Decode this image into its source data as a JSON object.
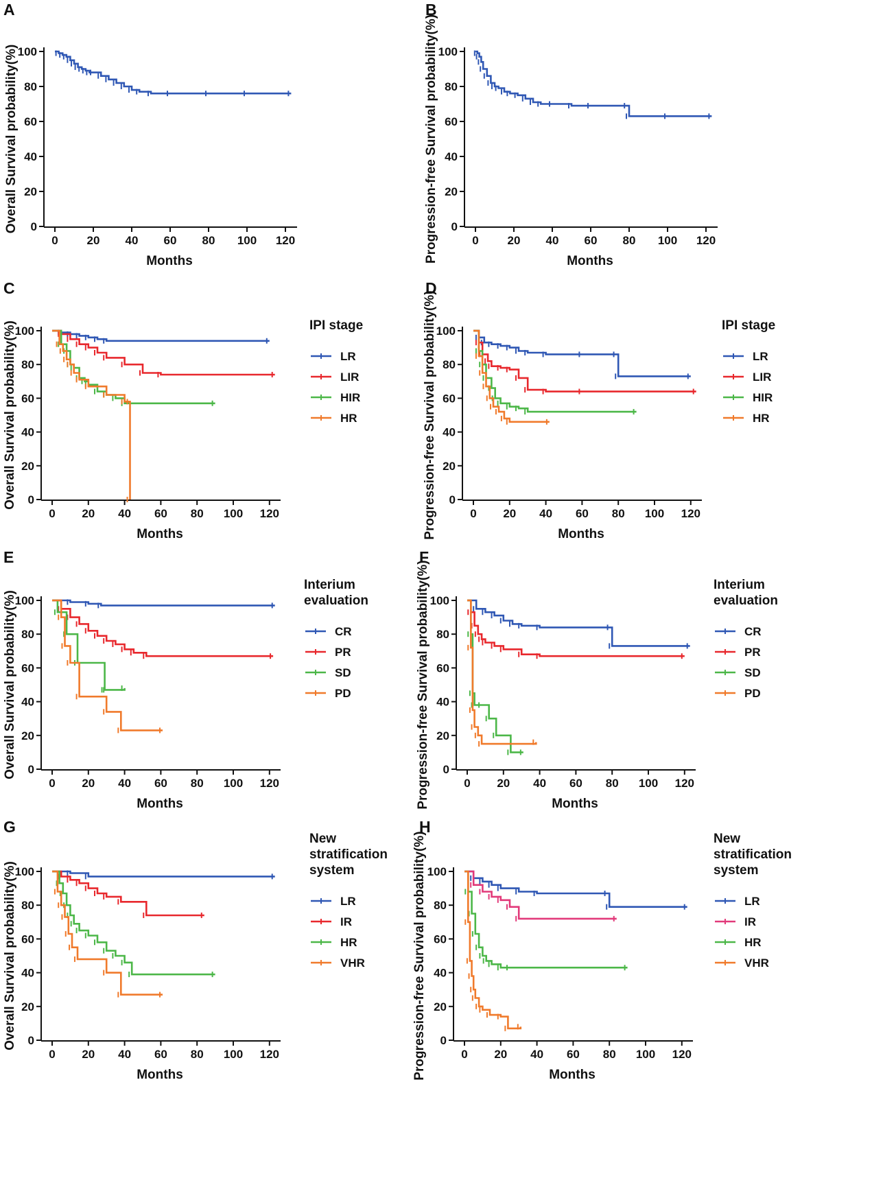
{
  "colors": {
    "blue": "#2f57b4",
    "red": "#e8282d",
    "green": "#4cb748",
    "orange": "#f07a2b",
    "magenta": "#e23a7a",
    "axis": "#111111"
  },
  "chart_data": [
    {
      "panel": "A",
      "type": "line",
      "xlabel": "Months",
      "ylabel": "Overall Survival probability(%)",
      "xlim": [
        0,
        125
      ],
      "ylim": [
        0,
        100
      ],
      "xticks": [
        0,
        20,
        40,
        60,
        80,
        100,
        120
      ],
      "yticks": [
        0,
        20,
        40,
        60,
        80,
        100
      ],
      "legend_title": [],
      "series": [
        {
          "name": "",
          "color": "blue",
          "x": [
            0,
            2,
            4,
            6,
            8,
            10,
            12,
            14,
            16,
            18,
            20,
            24,
            28,
            32,
            36,
            40,
            44,
            50,
            60,
            80,
            100,
            123
          ],
          "y": [
            100,
            99,
            98,
            97,
            95,
            93,
            91,
            90,
            89,
            88,
            88,
            86,
            84,
            82,
            80,
            78,
            77,
            76,
            76,
            76,
            76,
            76
          ]
        }
      ]
    },
    {
      "panel": "B",
      "type": "line",
      "xlabel": "Months",
      "ylabel": "Progression-free Survival probability(%)",
      "xlim": [
        0,
        125
      ],
      "ylim": [
        0,
        100
      ],
      "xticks": [
        0,
        20,
        40,
        60,
        80,
        100,
        120
      ],
      "yticks": [
        0,
        20,
        40,
        60,
        80,
        100
      ],
      "legend_title": [],
      "series": [
        {
          "name": "",
          "color": "blue",
          "x": [
            0,
            1,
            2,
            3,
            4,
            6,
            8,
            10,
            12,
            15,
            18,
            22,
            26,
            30,
            34,
            40,
            50,
            60,
            79,
            80,
            100,
            123
          ],
          "y": [
            100,
            99,
            97,
            94,
            90,
            86,
            82,
            80,
            79,
            77,
            76,
            75,
            73,
            71,
            70,
            70,
            69,
            69,
            69,
            63,
            63,
            63
          ]
        }
      ]
    },
    {
      "panel": "C",
      "type": "line",
      "xlabel": "Months",
      "ylabel": "Overall Survival probability(%)",
      "xlim": [
        0,
        125
      ],
      "ylim": [
        0,
        100
      ],
      "xticks": [
        0,
        20,
        40,
        60,
        80,
        100,
        120
      ],
      "yticks": [
        0,
        20,
        40,
        60,
        80,
        100
      ],
      "legend_title": [
        "IPI stage"
      ],
      "series": [
        {
          "name": "LR",
          "color": "blue",
          "x": [
            0,
            5,
            10,
            15,
            20,
            25,
            30,
            120
          ],
          "y": [
            100,
            99,
            98,
            97,
            96,
            95,
            94,
            94
          ]
        },
        {
          "name": "LIR",
          "color": "red",
          "x": [
            0,
            5,
            10,
            15,
            20,
            25,
            30,
            40,
            50,
            60,
            123
          ],
          "y": [
            100,
            98,
            95,
            92,
            90,
            87,
            84,
            80,
            75,
            74,
            74
          ]
        },
        {
          "name": "HIR",
          "color": "green",
          "x": [
            0,
            5,
            8,
            10,
            12,
            15,
            18,
            20,
            25,
            30,
            35,
            40,
            90
          ],
          "y": [
            100,
            92,
            88,
            80,
            78,
            72,
            70,
            68,
            64,
            62,
            60,
            57,
            57
          ]
        },
        {
          "name": "HR",
          "color": "orange",
          "x": [
            0,
            4,
            6,
            8,
            10,
            12,
            15,
            20,
            30,
            40,
            43,
            43
          ],
          "y": [
            100,
            92,
            88,
            83,
            80,
            75,
            71,
            67,
            62,
            58,
            58,
            0
          ]
        }
      ]
    },
    {
      "panel": "D",
      "type": "line",
      "xlabel": "Months",
      "ylabel": "Progression-free Survival probability(%)",
      "xlim": [
        0,
        125
      ],
      "ylim": [
        0,
        100
      ],
      "xticks": [
        0,
        20,
        40,
        60,
        80,
        100,
        120
      ],
      "yticks": [
        0,
        20,
        40,
        60,
        80,
        100
      ],
      "legend_title": [
        "IPI stage"
      ],
      "series": [
        {
          "name": "LR",
          "color": "blue",
          "x": [
            0,
            3,
            6,
            10,
            15,
            20,
            25,
            30,
            40,
            60,
            79,
            80,
            120
          ],
          "y": [
            100,
            96,
            93,
            92,
            91,
            90,
            88,
            87,
            86,
            86,
            86,
            73,
            73
          ]
        },
        {
          "name": "LIR",
          "color": "red",
          "x": [
            0,
            3,
            5,
            8,
            10,
            15,
            20,
            25,
            30,
            40,
            60,
            123
          ],
          "y": [
            100,
            93,
            86,
            82,
            79,
            78,
            77,
            72,
            65,
            64,
            64,
            64
          ]
        },
        {
          "name": "HIR",
          "color": "green",
          "x": [
            0,
            3,
            5,
            7,
            10,
            12,
            15,
            20,
            25,
            30,
            90
          ],
          "y": [
            100,
            88,
            80,
            72,
            66,
            60,
            57,
            55,
            54,
            52,
            52
          ]
        },
        {
          "name": "HR",
          "color": "orange",
          "x": [
            0,
            3,
            5,
            7,
            9,
            11,
            14,
            17,
            20,
            42
          ],
          "y": [
            100,
            85,
            75,
            67,
            60,
            55,
            52,
            48,
            46,
            46
          ]
        }
      ]
    },
    {
      "panel": "E",
      "type": "line",
      "xlabel": "Months",
      "ylabel": "Overall Survival probability(%)",
      "xlim": [
        0,
        125
      ],
      "ylim": [
        0,
        100
      ],
      "xticks": [
        0,
        20,
        40,
        60,
        80,
        100,
        120
      ],
      "yticks": [
        0,
        20,
        40,
        60,
        80,
        100
      ],
      "legend_title": [
        "Interium",
        "evaluation"
      ],
      "series": [
        {
          "name": "CR",
          "color": "blue",
          "x": [
            0,
            10,
            20,
            27,
            123
          ],
          "y": [
            100,
            99,
            98,
            97,
            97
          ]
        },
        {
          "name": "PR",
          "color": "red",
          "x": [
            0,
            5,
            10,
            15,
            20,
            25,
            30,
            35,
            40,
            45,
            52,
            122
          ],
          "y": [
            100,
            95,
            90,
            86,
            82,
            79,
            76,
            74,
            71,
            69,
            67,
            67
          ]
        },
        {
          "name": "SD",
          "color": "green",
          "x": [
            0,
            3,
            8,
            14,
            29,
            30,
            40
          ],
          "y": [
            100,
            93,
            80,
            63,
            47,
            47,
            48
          ]
        },
        {
          "name": "PD",
          "color": "orange",
          "x": [
            0,
            5,
            7,
            10,
            15,
            30,
            38,
            61
          ],
          "y": [
            100,
            90,
            73,
            63,
            43,
            34,
            23,
            23
          ]
        }
      ]
    },
    {
      "panel": "F",
      "type": "line",
      "xlabel": "Months",
      "ylabel": "Progression-free Survival probability(%)",
      "xlim": [
        0,
        125
      ],
      "ylim": [
        0,
        100
      ],
      "xticks": [
        0,
        20,
        40,
        60,
        80,
        100,
        120
      ],
      "yticks": [
        0,
        20,
        40,
        60,
        80,
        100
      ],
      "legend_title": [
        "Interium",
        "evaluation"
      ],
      "series": [
        {
          "name": "CR",
          "color": "blue",
          "x": [
            0,
            5,
            10,
            15,
            20,
            25,
            30,
            40,
            79,
            80,
            123
          ],
          "y": [
            100,
            95,
            93,
            91,
            88,
            86,
            85,
            84,
            84,
            73,
            73
          ]
        },
        {
          "name": "PR",
          "color": "red",
          "x": [
            0,
            2,
            4,
            6,
            8,
            10,
            15,
            20,
            30,
            40,
            120
          ],
          "y": [
            100,
            93,
            85,
            80,
            77,
            75,
            73,
            71,
            68,
            67,
            67
          ]
        },
        {
          "name": "SD",
          "color": "green",
          "x": [
            0,
            2,
            3,
            4,
            8,
            12,
            16,
            24,
            31
          ],
          "y": [
            100,
            80,
            45,
            38,
            38,
            30,
            20,
            10,
            10
          ]
        },
        {
          "name": "PD",
          "color": "orange",
          "x": [
            0,
            2,
            3,
            4,
            6,
            8,
            38
          ],
          "y": [
            100,
            72,
            35,
            25,
            20,
            15,
            16
          ]
        }
      ]
    },
    {
      "panel": "G",
      "type": "line",
      "xlabel": "Months",
      "ylabel": "Overall Survival probability(%)",
      "xlim": [
        0,
        125
      ],
      "ylim": [
        0,
        100
      ],
      "xticks": [
        0,
        20,
        40,
        60,
        80,
        100,
        120
      ],
      "yticks": [
        0,
        20,
        40,
        60,
        80,
        100
      ],
      "legend_title": [
        "New",
        "stratification",
        "system"
      ],
      "series": [
        {
          "name": "LR",
          "color": "blue",
          "x": [
            0,
            10,
            20,
            123
          ],
          "y": [
            100,
            99,
            97,
            97
          ]
        },
        {
          "name": "IR",
          "color": "red",
          "x": [
            0,
            5,
            10,
            15,
            20,
            25,
            30,
            38,
            52,
            84
          ],
          "y": [
            100,
            97,
            95,
            93,
            90,
            87,
            85,
            82,
            74,
            74
          ]
        },
        {
          "name": "HR",
          "color": "green",
          "x": [
            0,
            4,
            6,
            8,
            10,
            12,
            15,
            20,
            25,
            30,
            35,
            40,
            44,
            90
          ],
          "y": [
            100,
            93,
            87,
            80,
            74,
            69,
            65,
            62,
            58,
            53,
            50,
            46,
            39,
            39
          ]
        },
        {
          "name": "VHR",
          "color": "orange",
          "x": [
            0,
            3,
            5,
            7,
            9,
            11,
            14,
            30,
            38,
            61
          ],
          "y": [
            100,
            88,
            80,
            73,
            63,
            55,
            48,
            40,
            27,
            27
          ]
        }
      ]
    },
    {
      "panel": "H",
      "type": "line",
      "xlabel": "Months",
      "ylabel": "Progression-free Survival probability(%)",
      "xlim": [
        0,
        125
      ],
      "ylim": [
        0,
        100
      ],
      "xticks": [
        0,
        20,
        40,
        60,
        80,
        100,
        120
      ],
      "yticks": [
        0,
        20,
        40,
        60,
        80,
        100
      ],
      "legend_title": [
        "New",
        "stratification",
        "system"
      ],
      "series": [
        {
          "name": "LR",
          "color": "blue",
          "x": [
            0,
            5,
            10,
            15,
            20,
            30,
            40,
            79,
            80,
            123
          ],
          "y": [
            100,
            96,
            94,
            92,
            90,
            88,
            87,
            87,
            79,
            79
          ]
        },
        {
          "name": "IR",
          "color": "magenta",
          "x": [
            0,
            5,
            10,
            15,
            20,
            25,
            30,
            84
          ],
          "y": [
            100,
            92,
            88,
            85,
            83,
            79,
            72,
            72
          ]
        },
        {
          "name": "HR",
          "color": "green",
          "x": [
            0,
            2,
            4,
            6,
            8,
            10,
            12,
            15,
            20,
            25,
            90
          ],
          "y": [
            100,
            88,
            75,
            63,
            55,
            50,
            47,
            45,
            43,
            43,
            43
          ]
        },
        {
          "name": "VHR",
          "color": "orange",
          "x": [
            0,
            2,
            3,
            4,
            5,
            6,
            8,
            10,
            14,
            20,
            24,
            31
          ],
          "y": [
            100,
            70,
            47,
            38,
            30,
            25,
            20,
            18,
            15,
            14,
            7,
            8
          ]
        }
      ]
    }
  ],
  "panel_letters": [
    "A",
    "B",
    "C",
    "D",
    "E",
    "F",
    "G",
    "H"
  ]
}
